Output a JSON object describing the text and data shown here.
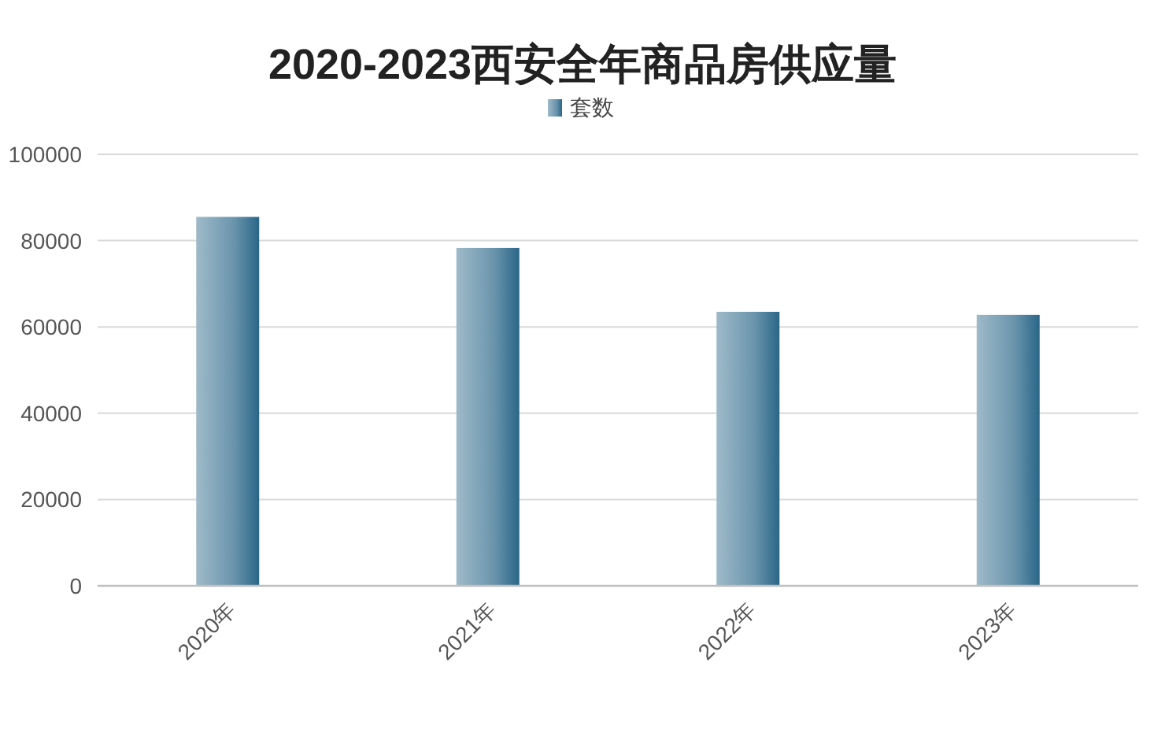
{
  "chart_data": {
    "type": "bar",
    "title": "2020-2023西安全年商品房供应量",
    "categories": [
      "2020年",
      "2021年",
      "2022年",
      "2023年"
    ],
    "series": [
      {
        "name": "套数",
        "color": "#2a6688",
        "values": [
          85500,
          78300,
          63500,
          62800
        ]
      }
    ],
    "ylim": [
      0,
      100000
    ],
    "yticks": [
      0,
      20000,
      40000,
      60000,
      80000,
      100000
    ],
    "grid": "y",
    "legend": "top"
  }
}
